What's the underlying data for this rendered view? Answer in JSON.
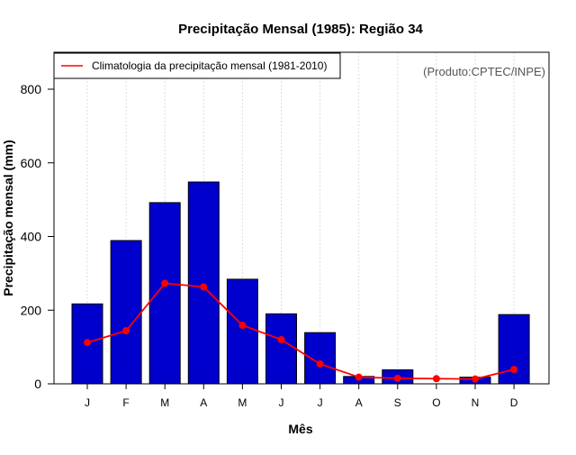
{
  "chart_data": {
    "type": "bar",
    "title": "Precipitação Mensal (1985): Região 34",
    "xlabel": "Mês",
    "ylabel": "Precipitação mensal (mm)",
    "ylim": [
      0,
      900
    ],
    "yticks": [
      0,
      200,
      400,
      600,
      800
    ],
    "categories": [
      "J",
      "F",
      "M",
      "A",
      "M",
      "J",
      "J",
      "A",
      "S",
      "O",
      "N",
      "D"
    ],
    "series": [
      {
        "name": "Precipitação mensal 1985",
        "type": "bar",
        "color": "#0000cc",
        "values": [
          217,
          389,
          492,
          548,
          284,
          190,
          139,
          20,
          38,
          0,
          18,
          188
        ]
      },
      {
        "name": "Climatologia da precipitação mensal (1981-2010)",
        "type": "line",
        "color": "#ff0000",
        "values": [
          112,
          144,
          273,
          263,
          159,
          120,
          54,
          18,
          15,
          14,
          13,
          39
        ]
      }
    ],
    "legend": {
      "label": "Climatologia da precipitação mensal (1981-2010)",
      "placement": "top-left"
    },
    "annotation": "(Produto:CPTEC/INPE)",
    "grid": "vertical dashed"
  }
}
